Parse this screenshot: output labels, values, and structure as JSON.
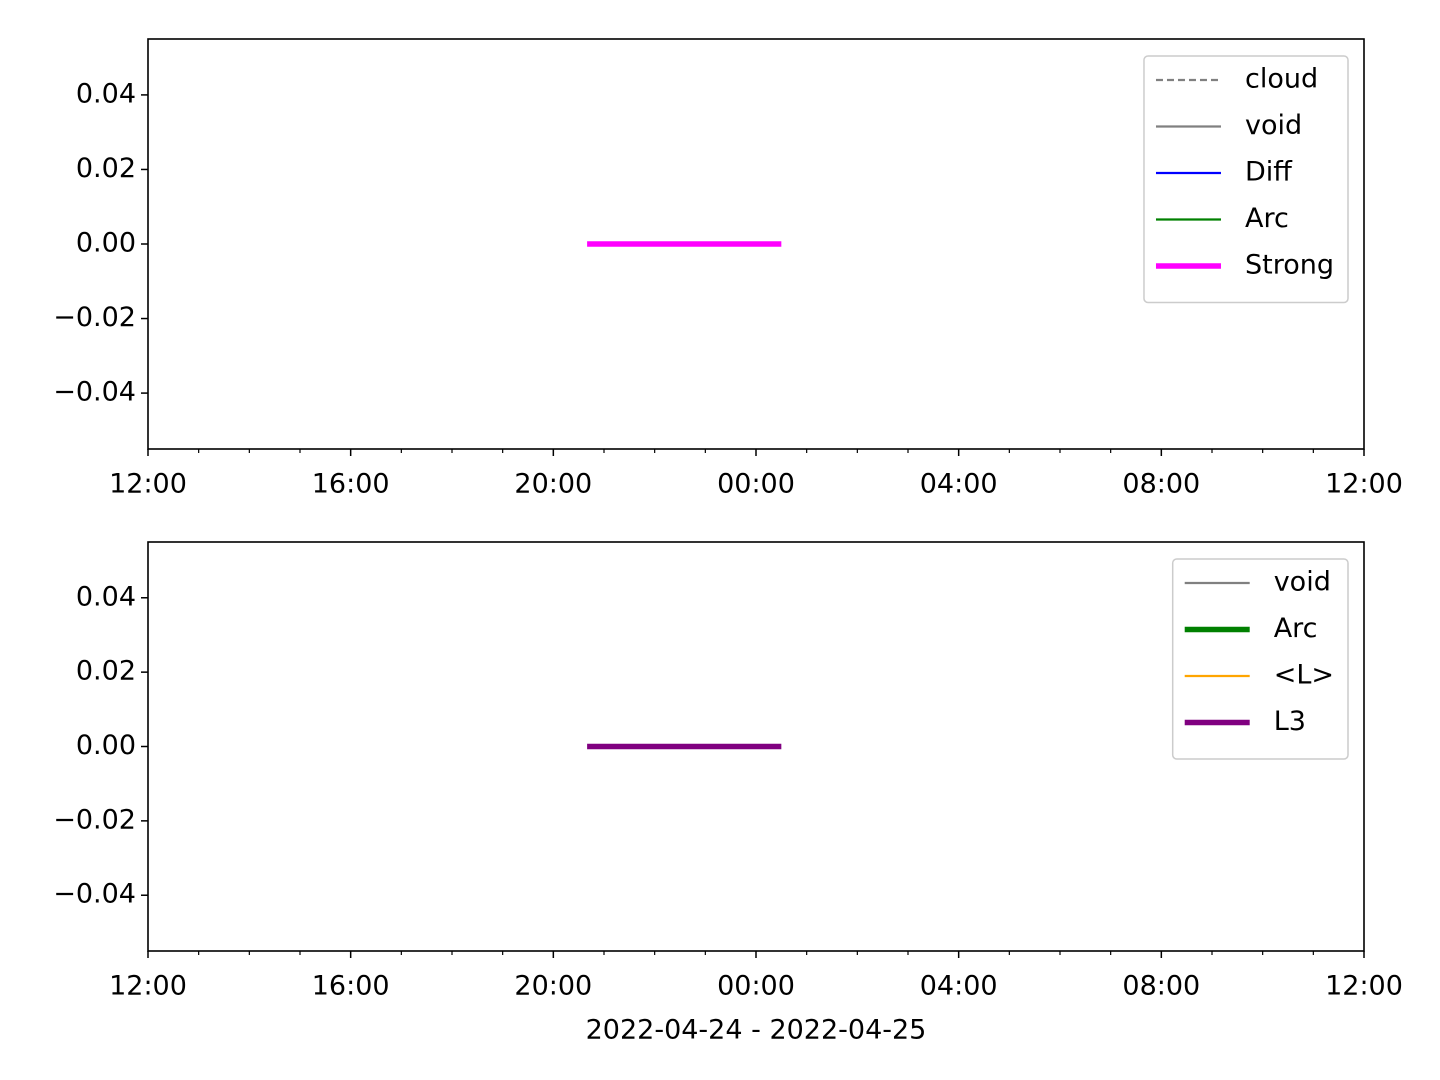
{
  "chart_data": [
    {
      "type": "line",
      "legend_loc": "upper right",
      "xlim": [
        "2022-04-24T12:00",
        "2022-04-25T12:00"
      ],
      "xticks": [
        {
          "value": "2022-04-24T12:00",
          "label": "12:00"
        },
        {
          "value": "2022-04-24T16:00",
          "label": "16:00"
        },
        {
          "value": "2022-04-24T20:00",
          "label": "20:00"
        },
        {
          "value": "2022-04-25T00:00",
          "label": "00:00"
        },
        {
          "value": "2022-04-25T04:00",
          "label": "04:00"
        },
        {
          "value": "2022-04-25T08:00",
          "label": "08:00"
        },
        {
          "value": "2022-04-25T12:00",
          "label": "12:00"
        }
      ],
      "xminorticks": [
        "2022-04-24T13:00",
        "2022-04-24T14:00",
        "2022-04-24T15:00",
        "2022-04-24T17:00",
        "2022-04-24T18:00",
        "2022-04-24T19:00",
        "2022-04-24T21:00",
        "2022-04-24T22:00",
        "2022-04-24T23:00",
        "2022-04-25T01:00",
        "2022-04-25T02:00",
        "2022-04-25T03:00",
        "2022-04-25T05:00",
        "2022-04-25T06:00",
        "2022-04-25T07:00",
        "2022-04-25T09:00",
        "2022-04-25T10:00",
        "2022-04-25T11:00"
      ],
      "ylim": [
        -0.055,
        0.055
      ],
      "yticks": [
        {
          "value": -0.04,
          "label": "−0.04"
        },
        {
          "value": -0.02,
          "label": "−0.02"
        },
        {
          "value": 0,
          "label": "0.00"
        },
        0.02,
        0.04
      ],
      "series": [
        {
          "name": "cloud",
          "color": "#808080",
          "linestyle": "dashed",
          "linewidth": 1,
          "x": [],
          "values": []
        },
        {
          "name": "void",
          "color": "#808080",
          "linestyle": "solid",
          "linewidth": 1,
          "x": [],
          "values": []
        },
        {
          "name": "Diff",
          "color": "#0000ff",
          "linestyle": "solid",
          "linewidth": 1,
          "x": [],
          "values": []
        },
        {
          "name": "Arc",
          "color": "#008000",
          "linestyle": "solid",
          "linewidth": 1,
          "x": [],
          "values": []
        },
        {
          "name": "Strong",
          "color": "#ff00ff",
          "linestyle": "solid",
          "linewidth": 2.5,
          "x": [
            "2022-04-24T20:40",
            "2022-04-25T00:30"
          ],
          "values": [
            0,
            0
          ]
        }
      ]
    },
    {
      "type": "line",
      "legend_loc": "upper right",
      "xlabel": "2022-04-24 - 2022-04-25",
      "xlim": [
        "2022-04-24T12:00",
        "2022-04-25T12:00"
      ],
      "xticks": [
        {
          "value": "2022-04-24T12:00",
          "label": "12:00"
        },
        {
          "value": "2022-04-24T16:00",
          "label": "16:00"
        },
        {
          "value": "2022-04-24T20:00",
          "label": "20:00"
        },
        {
          "value": "2022-04-25T00:00",
          "label": "00:00"
        },
        {
          "value": "2022-04-25T04:00",
          "label": "04:00"
        },
        {
          "value": "2022-04-25T08:00",
          "label": "08:00"
        },
        {
          "value": "2022-04-25T12:00",
          "label": "12:00"
        }
      ],
      "xminorticks": [
        "2022-04-24T13:00",
        "2022-04-24T14:00",
        "2022-04-24T15:00",
        "2022-04-24T17:00",
        "2022-04-24T18:00",
        "2022-04-24T19:00",
        "2022-04-24T21:00",
        "2022-04-24T22:00",
        "2022-04-24T23:00",
        "2022-04-25T01:00",
        "2022-04-25T02:00",
        "2022-04-25T03:00",
        "2022-04-25T05:00",
        "2022-04-25T06:00",
        "2022-04-25T07:00",
        "2022-04-25T09:00",
        "2022-04-25T10:00",
        "2022-04-25T11:00"
      ],
      "ylim": [
        -0.055,
        0.055
      ],
      "yticks": [
        {
          "value": -0.04,
          "label": "−0.04"
        },
        {
          "value": -0.02,
          "label": "−0.02"
        },
        {
          "value": 0,
          "label": "0.00"
        },
        0.02,
        0.04
      ],
      "series": [
        {
          "name": "void",
          "color": "#808080",
          "linestyle": "solid",
          "linewidth": 1,
          "x": [],
          "values": []
        },
        {
          "name": "Arc",
          "color": "#008000",
          "linestyle": "solid",
          "linewidth": 2.5,
          "x": [],
          "values": []
        },
        {
          "name": "<L>",
          "color": "#ffa500",
          "linestyle": "solid",
          "linewidth": 1,
          "x": [],
          "values": []
        },
        {
          "name": "L3",
          "color": "#800080",
          "linestyle": "solid",
          "linewidth": 2.5,
          "x": [
            "2022-04-24T20:40",
            "2022-04-25T00:30"
          ],
          "values": [
            0,
            0
          ]
        }
      ]
    }
  ]
}
